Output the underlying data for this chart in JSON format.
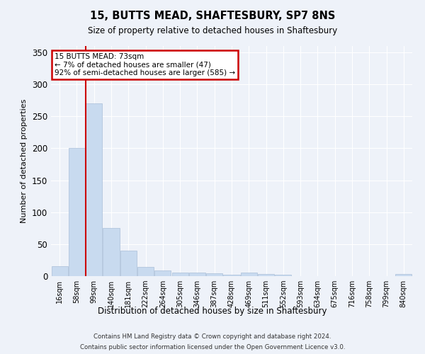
{
  "title": "15, BUTTS MEAD, SHAFTESBURY, SP7 8NS",
  "subtitle": "Size of property relative to detached houses in Shaftesbury",
  "xlabel": "Distribution of detached houses by size in Shaftesbury",
  "ylabel": "Number of detached properties",
  "categories": [
    "16sqm",
    "58sqm",
    "99sqm",
    "140sqm",
    "181sqm",
    "222sqm",
    "264sqm",
    "305sqm",
    "346sqm",
    "387sqm",
    "428sqm",
    "469sqm",
    "511sqm",
    "552sqm",
    "593sqm",
    "634sqm",
    "675sqm",
    "716sqm",
    "758sqm",
    "799sqm",
    "840sqm"
  ],
  "values": [
    15,
    200,
    270,
    75,
    40,
    14,
    9,
    6,
    5,
    4,
    2,
    6,
    3,
    2,
    0,
    0,
    0,
    0,
    0,
    0,
    3
  ],
  "bar_color": "#c8daef",
  "bar_edge_color": "#aabfd8",
  "red_line_x": 1.5,
  "annotation_title": "15 BUTTS MEAD: 73sqm",
  "annotation_line1": "← 7% of detached houses are smaller (47)",
  "annotation_line2": "92% of semi-detached houses are larger (585) →",
  "annotation_box_color": "#ffffff",
  "annotation_border_color": "#cc0000",
  "red_line_color": "#cc0000",
  "background_color": "#eef2f9",
  "grid_color": "#ffffff",
  "ylim": [
    0,
    360
  ],
  "yticks": [
    0,
    50,
    100,
    150,
    200,
    250,
    300,
    350
  ],
  "footer1": "Contains HM Land Registry data © Crown copyright and database right 2024.",
  "footer2": "Contains public sector information licensed under the Open Government Licence v3.0."
}
